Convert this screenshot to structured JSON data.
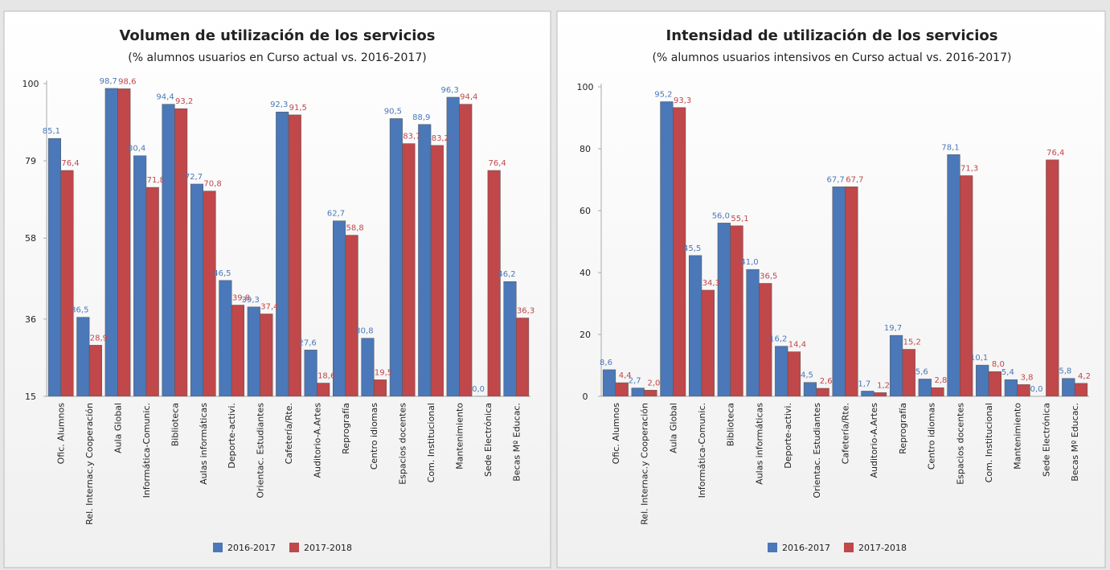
{
  "chart_data": [
    {
      "type": "bar",
      "title": "Volumen de utilización de los servicios",
      "subtitle": "(% alumnos usuarios en Curso actual vs. 2016-2017)",
      "categories": [
        "Ofic. Alumnos",
        "Rel. Internac.y Cooperación",
        "Aula Global",
        "Informática-Comunic.",
        "Biblioteca",
        "Aulas informáticas",
        "Deporte-activi.",
        "Orientac. Estudiantes",
        "Cafetería/Rte.",
        "Auditorio-A.Artes",
        "Reprografía",
        "Centro idiomas",
        "Espacios docentes",
        "Com. Institucional",
        "Mantenimiento",
        "Sede Electrónica",
        "Becas Mº Educac."
      ],
      "series": [
        {
          "name": "2016-2017",
          "color": "#4a78b8",
          "values": [
            85.1,
            36.5,
            98.7,
            80.4,
            94.4,
            72.7,
            46.5,
            39.3,
            92.3,
            27.6,
            62.7,
            30.8,
            90.5,
            88.9,
            96.3,
            0.0,
            46.2
          ],
          "value_labels": [
            "85,1",
            "36,5",
            "98,7",
            "80,4",
            "94,4",
            "72,7",
            "46,5",
            "39,3",
            "92,3",
            "27,6",
            "62,7",
            "30,8",
            "90,5",
            "88,9",
            "96,3",
            "0,0",
            "46,2"
          ]
        },
        {
          "name": "2017-2018",
          "color": "#c0474a",
          "values": [
            76.4,
            28.9,
            98.6,
            71.8,
            93.2,
            70.8,
            39.8,
            37.4,
            91.5,
            18.6,
            58.8,
            19.5,
            83.7,
            83.2,
            94.4,
            76.4,
            36.3
          ],
          "value_labels": [
            "76,4",
            "28,9",
            "98,6",
            "71,8",
            "93,2",
            "70,8",
            "39,8",
            "37,4",
            "91,5",
            "18,6",
            "58,8",
            "19,5",
            "83,7",
            "83,2",
            "94,4",
            "76,4",
            "36,3"
          ]
        }
      ],
      "ylim": [
        15,
        100
      ],
      "yticks": [
        15,
        36,
        58,
        79,
        100
      ]
    },
    {
      "type": "bar",
      "title": "Intensidad de utilización de los servicios",
      "subtitle": "(% alumnos usuarios intensivos en Curso actual vs. 2016-2017)",
      "categories": [
        "Ofic. Alumnos",
        "Rel. Internac.y Cooperación",
        "Aula Global",
        "Informática-Comunic.",
        "Biblioteca",
        "Aulas informáticas",
        "Deporte-activi.",
        "Orientac. Estudiantes",
        "Cafetería/Rte.",
        "Auditorio-A.Artes",
        "Reprografía",
        "Centro idiomas",
        "Espacios docentes",
        "Com. Institucional",
        "Mantenimiento",
        "Sede Electrónica",
        "Becas Mº Educac."
      ],
      "series": [
        {
          "name": "2016-2017",
          "color": "#4a78b8",
          "values": [
            8.6,
            2.7,
            95.2,
            45.5,
            56.0,
            41.0,
            16.2,
            4.5,
            67.7,
            1.7,
            19.7,
            5.6,
            78.1,
            10.1,
            5.4,
            0.0,
            5.8
          ],
          "value_labels": [
            "8,6",
            "2,7",
            "95,2",
            "45,5",
            "56,0",
            "41,0",
            "16,2",
            "4,5",
            "67,7",
            "1,7",
            "19,7",
            "5,6",
            "78,1",
            "10,1",
            "5,4",
            "0,0",
            "5,8"
          ]
        },
        {
          "name": "2017-2018",
          "color": "#c0474a",
          "values": [
            4.4,
            2.0,
            93.3,
            34.3,
            55.1,
            36.5,
            14.4,
            2.6,
            67.7,
            1.2,
            15.2,
            2.8,
            71.3,
            8.0,
            3.8,
            76.4,
            4.2
          ],
          "value_labels": [
            "4,4",
            "2,0",
            "93,3",
            "34,3",
            "55,1",
            "36,5",
            "14,4",
            "2,6",
            "67,7",
            "1,2",
            "15,2",
            "2,8",
            "71,3",
            "8,0",
            "3,8",
            "76,4",
            "4,2"
          ]
        }
      ],
      "ylim": [
        0,
        100
      ],
      "yticks": [
        0,
        20,
        40,
        60,
        80,
        100
      ]
    }
  ]
}
